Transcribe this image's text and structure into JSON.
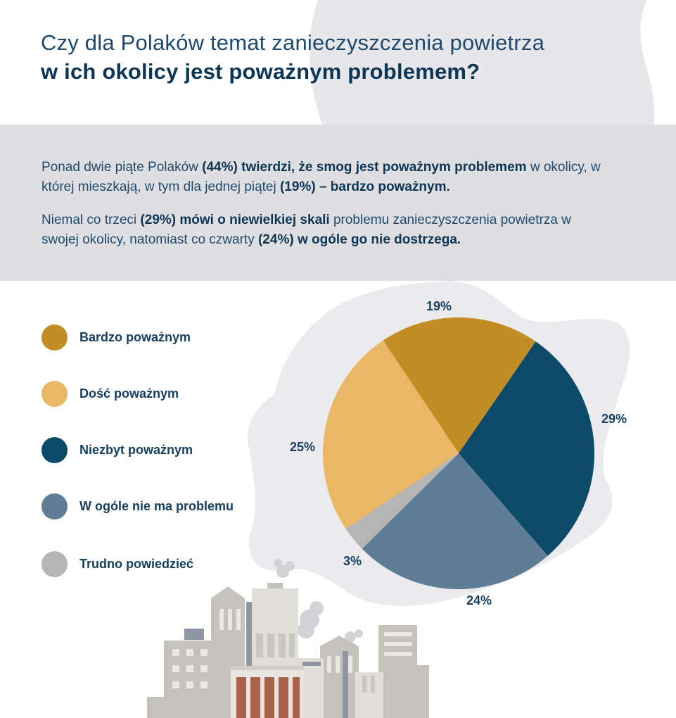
{
  "header": {
    "title_line1": "Czy dla Polaków temat zanieczyszczenia powietrza",
    "title_line2": "w ich okolicy jest poważnym problemem?"
  },
  "summary": {
    "p1": [
      {
        "t": "Ponad dwie piąte Polaków ",
        "b": false
      },
      {
        "t": "(44%) twierdzi, że smog jest poważnym problemem",
        "b": true
      },
      {
        "t": " w okolicy, w której mieszkają, w tym dla jednej piątej ",
        "b": false
      },
      {
        "t": "(19%) – bardzo poważnym.",
        "b": true
      }
    ],
    "p2": [
      {
        "t": "Niemal co trzeci ",
        "b": false
      },
      {
        "t": "(29%) mówi o niewielkiej skali",
        "b": true
      },
      {
        "t": " problemu zanieczyszczenia powietrza w swojej okolicy, natomiast co czwarty ",
        "b": false
      },
      {
        "t": "(24%) w ogóle go nie dostrzega.",
        "b": true
      }
    ]
  },
  "chart_data": {
    "type": "pie",
    "categories": [
      "Bardzo poważnym",
      "Dość poważnym",
      "Niezbyt poważnym",
      "W ogóle nie ma problemu",
      "Trudno powiedzieć"
    ],
    "values": [
      19,
      25,
      29,
      24,
      3
    ],
    "labels": [
      "19%",
      "25%",
      "29%",
      "24%",
      "3%"
    ],
    "colors": [
      "#c28d22",
      "#e8b866",
      "#0c4a69",
      "#5f7d94",
      "#b5b5b5"
    ],
    "draw_order": [
      0,
      2,
      3,
      4,
      1
    ],
    "legend_position": "left"
  }
}
